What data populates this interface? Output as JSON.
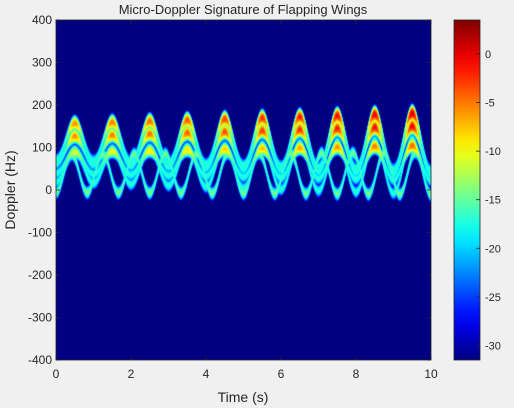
{
  "chart_data": {
    "type": "heatmap",
    "title": "Micro-Doppler Signature of Flapping Wings",
    "xlabel": "Time (s)",
    "ylabel": "Doppler (Hz)",
    "xlim": [
      0,
      10
    ],
    "ylim": [
      -400,
      400
    ],
    "xticks": [
      0,
      2,
      4,
      6,
      8,
      10
    ],
    "yticks": [
      -400,
      -300,
      -200,
      -100,
      0,
      100,
      200,
      300,
      400
    ],
    "colorbar": {
      "colormap": "jet",
      "range": [
        -31.5,
        3.5
      ],
      "ticks": [
        0,
        -5,
        -10,
        -15,
        -20,
        -25,
        -30
      ]
    },
    "background_level_db": -31.5,
    "flap_frequency_hz": 1,
    "body_component": {
      "frequency_hz": 1.2,
      "center_hz": 40,
      "amplitude_hz": [
        45,
        50
      ],
      "peak_level_db": -14
    },
    "wing_components": [
      {
        "name": "",
        "center_hz": 115,
        "amplitude_hz": [
          42,
          68
        ],
        "peak_level_db": [
          -6,
          1
        ]
      },
      {
        "name": "",
        "center_hz": 95,
        "amplitude_hz": [
          32,
          58
        ],
        "peak_level_db": [
          -6,
          0
        ]
      },
      {
        "name": "",
        "center_hz": 55,
        "amplitude_hz": [
          35,
          65
        ],
        "peak_level_db": [
          -15,
          -15
        ]
      },
      {
        "name": "",
        "center_hz": 65,
        "amplitude_hz": [
          25,
          42
        ],
        "peak_level_db": [
          -11,
          -4
        ]
      }
    ]
  },
  "colors": {
    "page_background": "#f0f0f0",
    "plot_background": "#00008f",
    "axis_text": "#262626"
  }
}
